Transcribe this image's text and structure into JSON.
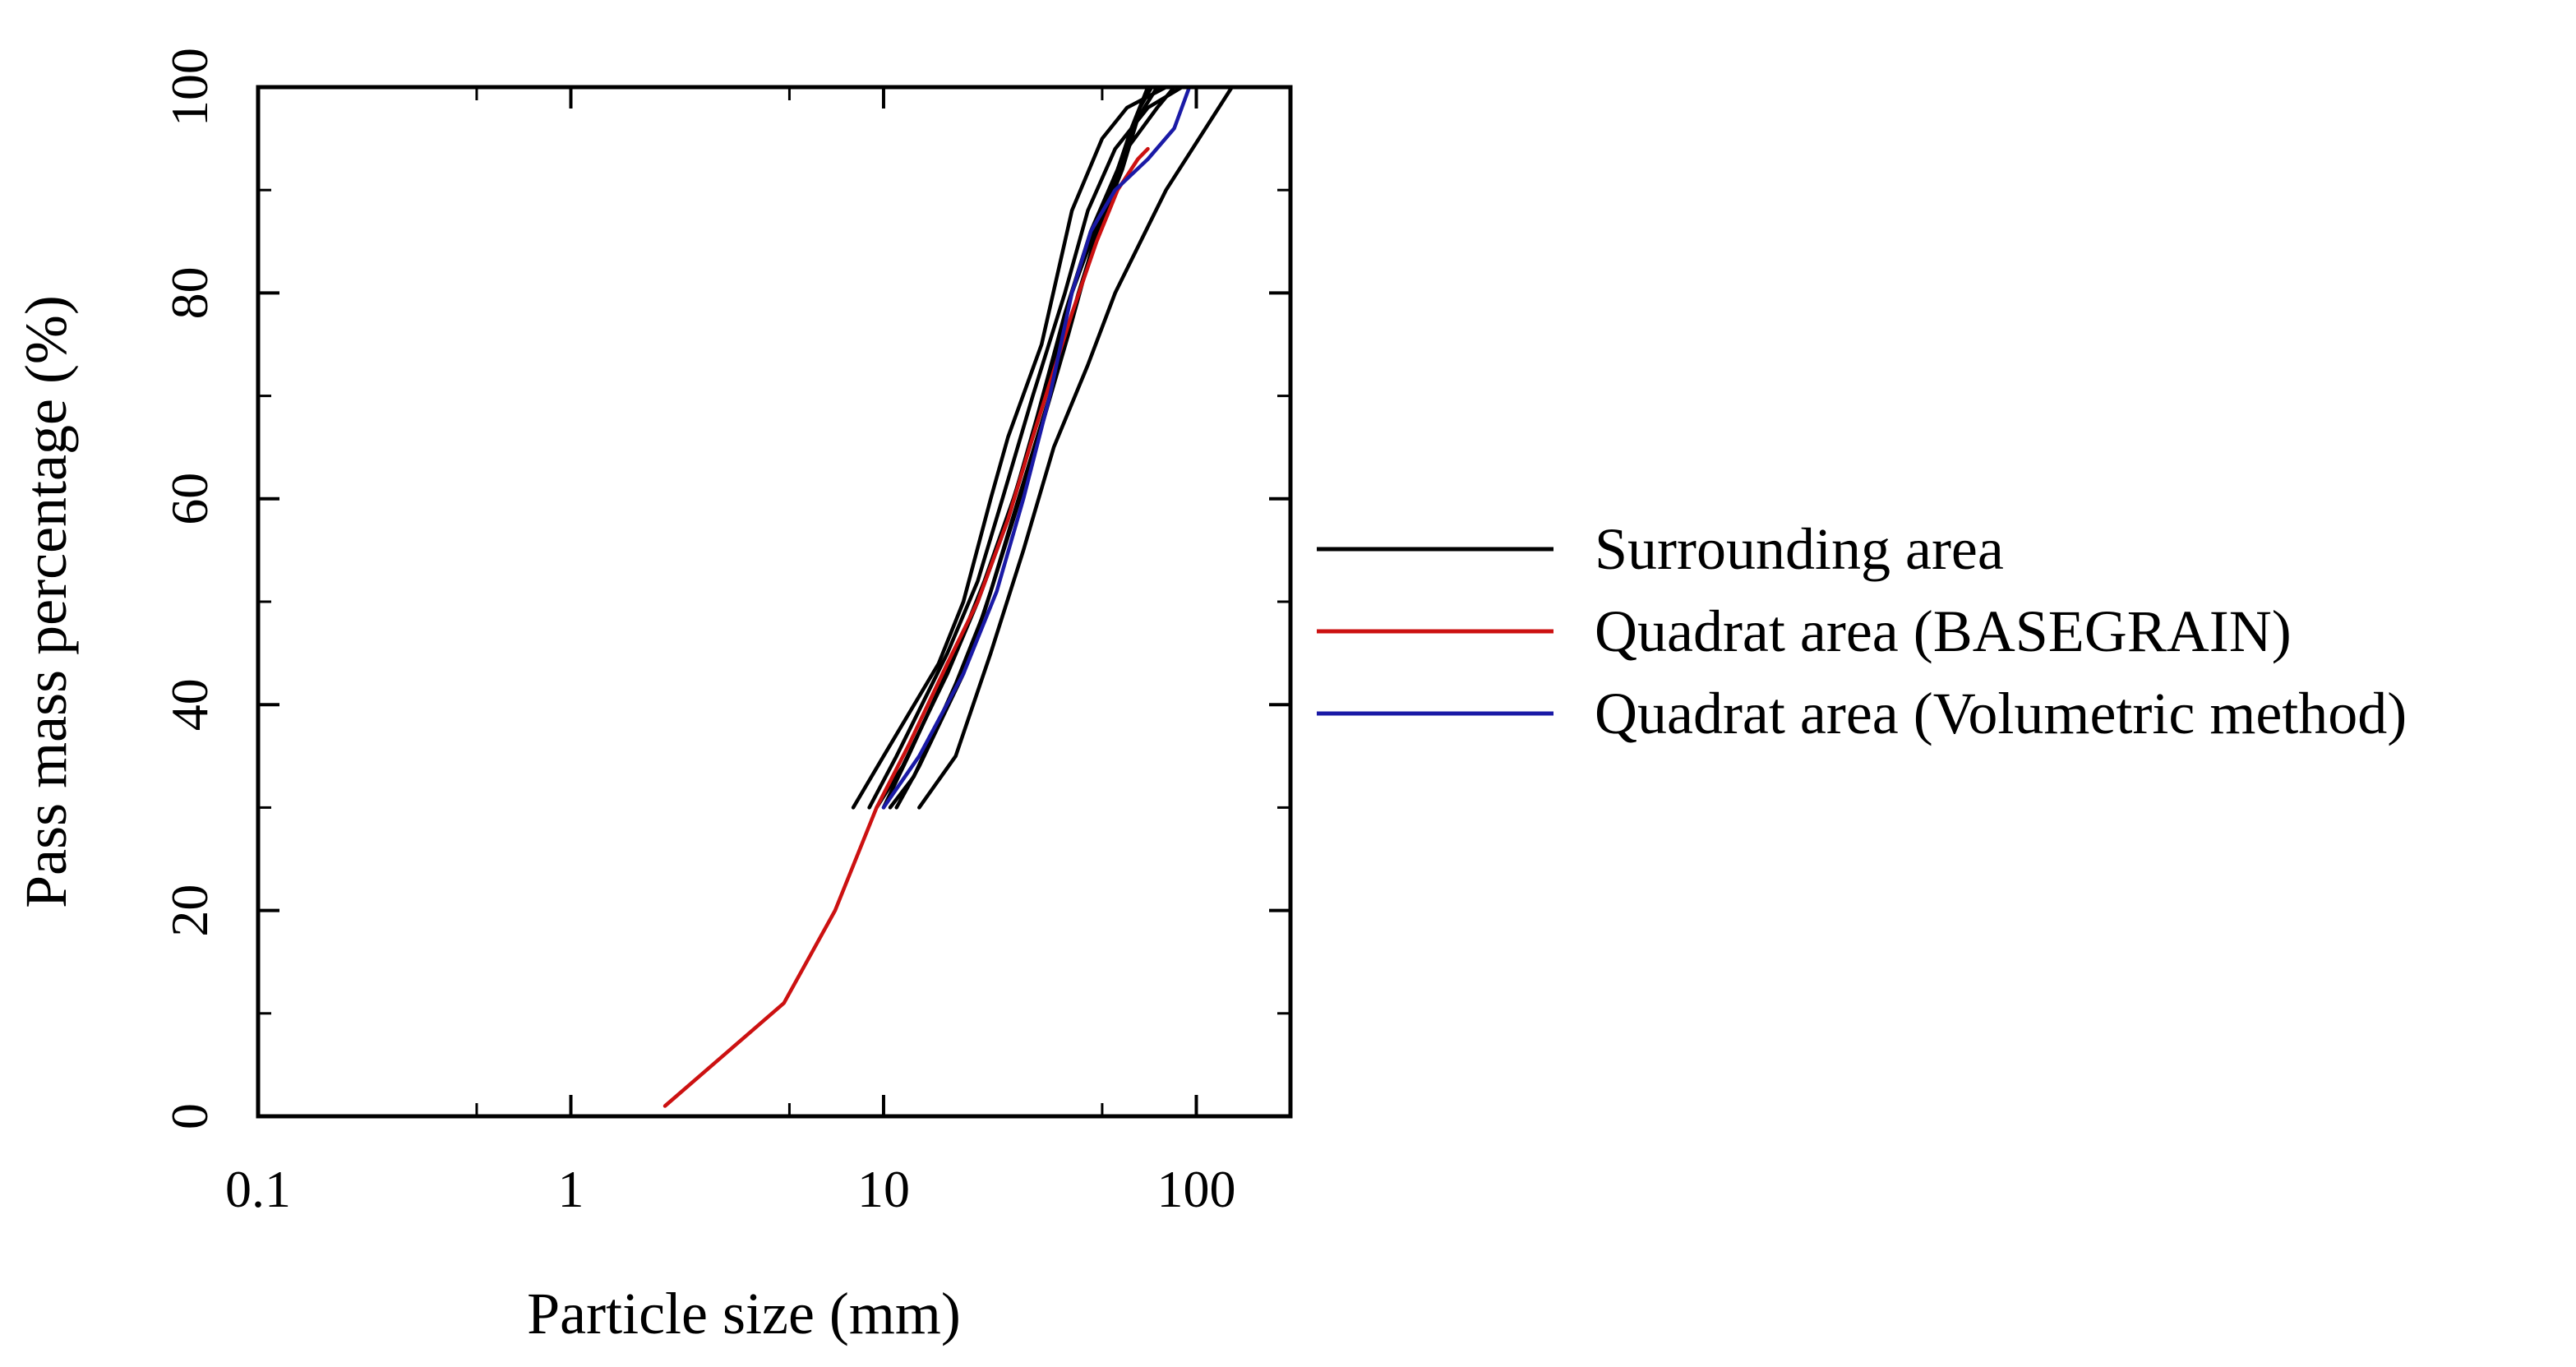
{
  "chart_data": {
    "type": "line",
    "title": "",
    "xlabel": "Particle size (mm)",
    "ylabel": "Pass mass percentage (%)",
    "xscale": "log",
    "xlim": [
      0.1,
      200
    ],
    "ylim": [
      0,
      100
    ],
    "x_ticks": [
      {
        "value": 0.1,
        "label": "0.1"
      },
      {
        "value": 1,
        "label": "1"
      },
      {
        "value": 10,
        "label": "10"
      },
      {
        "value": 100,
        "label": "100"
      }
    ],
    "y_ticks": [
      {
        "value": 0,
        "label": "0"
      },
      {
        "value": 20,
        "label": "20"
      },
      {
        "value": 40,
        "label": "40"
      },
      {
        "value": 60,
        "label": "60"
      },
      {
        "value": 80,
        "label": "80"
      },
      {
        "value": 100,
        "label": "100"
      }
    ],
    "legend_position": "right",
    "legend": [
      {
        "label": "Surrounding area",
        "color": "#000000"
      },
      {
        "label": "Quadrat area (BASEGRAIN)",
        "color": "#cc1111"
      },
      {
        "label": "Quadrat area (Volumetric method)",
        "color": "#1a1aa6"
      }
    ],
    "series": [
      {
        "name": "Surrounding area",
        "color": "#000000",
        "points": [
          [
            8,
            30
          ],
          [
            10,
            35
          ],
          [
            15,
            44
          ],
          [
            18,
            50
          ],
          [
            22,
            60
          ],
          [
            25,
            66
          ],
          [
            32,
            75
          ],
          [
            40,
            88
          ],
          [
            50,
            95
          ],
          [
            60,
            98
          ],
          [
            80,
            100
          ]
        ]
      },
      {
        "name": "Surrounding area",
        "color": "#000000",
        "points": [
          [
            9,
            30
          ],
          [
            11,
            35
          ],
          [
            16,
            45
          ],
          [
            20,
            52
          ],
          [
            24,
            60
          ],
          [
            30,
            70
          ],
          [
            38,
            80
          ],
          [
            45,
            88
          ],
          [
            55,
            94
          ],
          [
            70,
            98
          ],
          [
            90,
            100
          ]
        ]
      },
      {
        "name": "Surrounding area",
        "color": "#000000",
        "points": [
          [
            10,
            30
          ],
          [
            12,
            35
          ],
          [
            17,
            45
          ],
          [
            21,
            52
          ],
          [
            26,
            60
          ],
          [
            33,
            70
          ],
          [
            40,
            80
          ],
          [
            50,
            88
          ],
          [
            60,
            94
          ],
          [
            75,
            98
          ],
          [
            85,
            100
          ]
        ]
      },
      {
        "name": "Surrounding area",
        "color": "#000000",
        "points": [
          [
            9.5,
            30
          ],
          [
            11.5,
            34
          ],
          [
            16,
            43
          ],
          [
            20,
            50
          ],
          [
            25,
            58
          ],
          [
            31,
            68
          ],
          [
            38,
            78
          ],
          [
            46,
            86
          ],
          [
            56,
            92
          ],
          [
            66,
            98
          ],
          [
            72,
            100
          ]
        ]
      },
      {
        "name": "Surrounding area",
        "color": "#000000",
        "points": [
          [
            10.5,
            30
          ],
          [
            12.5,
            33
          ],
          [
            17,
            42
          ],
          [
            21,
            49
          ],
          [
            26,
            58
          ],
          [
            32,
            67
          ],
          [
            39,
            76
          ],
          [
            47,
            85
          ],
          [
            58,
            92
          ],
          [
            65,
            97
          ],
          [
            75,
            100
          ]
        ]
      },
      {
        "name": "Surrounding area",
        "color": "#000000",
        "points": [
          [
            11,
            30
          ],
          [
            13,
            34
          ],
          [
            18,
            43
          ],
          [
            22,
            51
          ],
          [
            27,
            60
          ],
          [
            34,
            70
          ],
          [
            42,
            80
          ],
          [
            52,
            89
          ],
          [
            62,
            96
          ],
          [
            70,
            100
          ]
        ]
      },
      {
        "name": "Surrounding area",
        "color": "#000000",
        "points": [
          [
            13,
            30
          ],
          [
            17,
            35
          ],
          [
            22,
            45
          ],
          [
            28,
            55
          ],
          [
            35,
            65
          ],
          [
            45,
            73
          ],
          [
            55,
            80
          ],
          [
            80,
            90
          ],
          [
            130,
            100
          ]
        ]
      },
      {
        "name": "Quadrat area (BASEGRAIN)",
        "color": "#cc1111",
        "points": [
          [
            2,
            1
          ],
          [
            4.8,
            11
          ],
          [
            7,
            20
          ],
          [
            9.5,
            30
          ],
          [
            12,
            36
          ],
          [
            16,
            44
          ],
          [
            20,
            50
          ],
          [
            25,
            58
          ],
          [
            30,
            66
          ],
          [
            40,
            78
          ],
          [
            48,
            85
          ],
          [
            56,
            90
          ],
          [
            65,
            93
          ],
          [
            70,
            94
          ]
        ]
      },
      {
        "name": "Quadrat area (Volumetric method)",
        "color": "#1a1aa6",
        "points": [
          [
            10,
            30
          ],
          [
            13,
            35
          ],
          [
            18,
            43
          ],
          [
            23,
            51
          ],
          [
            28,
            60
          ],
          [
            34,
            70
          ],
          [
            40,
            80
          ],
          [
            46,
            86
          ],
          [
            55,
            90
          ],
          [
            70,
            93
          ],
          [
            85,
            96
          ],
          [
            95,
            100
          ]
        ]
      }
    ]
  }
}
